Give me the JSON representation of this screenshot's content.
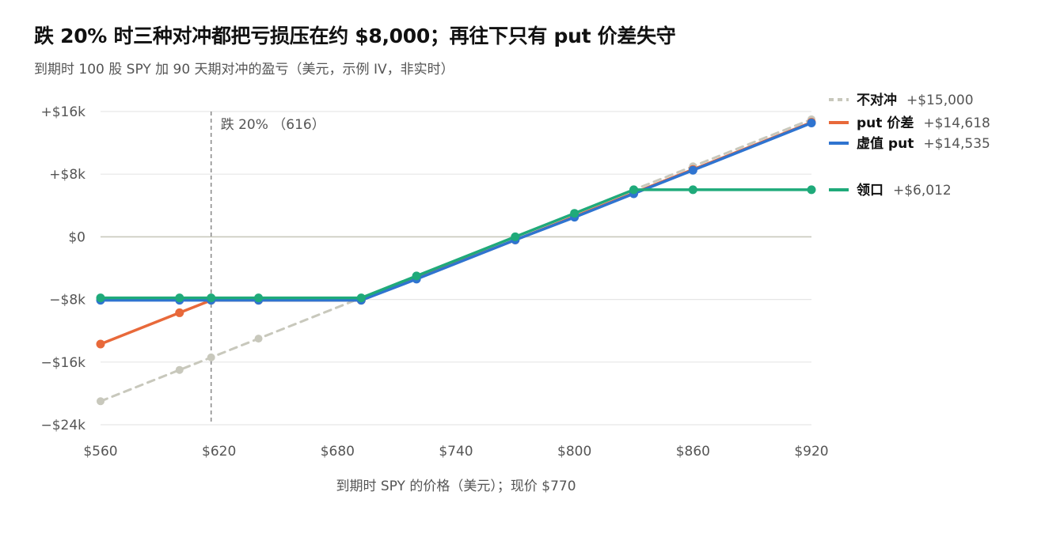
{
  "title": "跌 20% 时三种对冲都把亏损压在约 $8,000；再往下只有 put 价差失守",
  "subtitle": "到期时 100 股 SPY 加 90 天期对冲的盈亏（美元，示例 IV，非实时）",
  "chart_data": {
    "type": "line",
    "xlabel": "到期时 SPY 的价格（美元）；现价 $770",
    "ylabel": "",
    "xlim": [
      560,
      920
    ],
    "ylim": [
      -24000,
      16000
    ],
    "x_ticks": [
      560,
      620,
      680,
      740,
      800,
      860,
      920
    ],
    "x_tick_labels": [
      "$560",
      "$620",
      "$680",
      "$740",
      "$800",
      "$860",
      "$920"
    ],
    "y_ticks": [
      16000,
      8000,
      0,
      -8000,
      -16000,
      -24000
    ],
    "y_tick_labels": [
      "+$16k",
      "+$8k",
      "$0",
      "−$8k",
      "−$16k",
      "−$24k"
    ],
    "grid": true,
    "annotation": {
      "x": 616,
      "label": "跌 20% （616）"
    },
    "series": [
      {
        "name": "不对冲",
        "end_label": "+$15,000",
        "color": "#c8c8bc",
        "dashed": true,
        "x": [
          560,
          600,
          616,
          640,
          770,
          860,
          920
        ],
        "y": [
          -21000,
          -17000,
          -15400,
          -13000,
          0,
          9000,
          15000
        ]
      },
      {
        "name": "put 价差",
        "end_label": "+$14,618",
        "color": "#e8693a",
        "dashed": false,
        "x": [
          560,
          600,
          616,
          640,
          692,
          720,
          770,
          800,
          830,
          860,
          920
        ],
        "y": [
          -13700,
          -9700,
          -8100,
          -8100,
          -8100,
          -5300,
          -400,
          2600,
          5600,
          8600,
          14618
        ]
      },
      {
        "name": "虚值 put",
        "end_label": "+$14,535",
        "color": "#2f74d0",
        "dashed": false,
        "x": [
          560,
          600,
          616,
          640,
          692,
          720,
          770,
          800,
          830,
          860,
          920
        ],
        "y": [
          -8100,
          -8100,
          -8100,
          -8100,
          -8100,
          -5400,
          -400,
          2500,
          5500,
          8500,
          14535
        ]
      },
      {
        "name": "领口",
        "end_label": "+$6,012",
        "color": "#1faa7a",
        "dashed": false,
        "x": [
          560,
          600,
          616,
          640,
          692,
          720,
          770,
          800,
          830,
          860,
          920
        ],
        "y": [
          -7800,
          -7800,
          -7800,
          -7800,
          -7800,
          -5000,
          0,
          3000,
          6012,
          6012,
          6012
        ]
      }
    ]
  }
}
